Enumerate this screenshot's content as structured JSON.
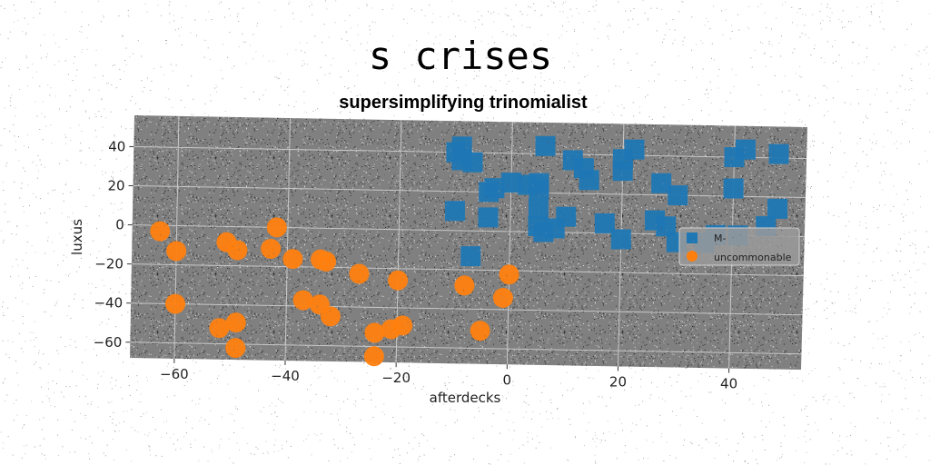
{
  "chart_data": {
    "type": "scatter",
    "suptitle": "s crises",
    "title": "supersimplifying trinomialist",
    "xlabel": "afterdecks",
    "ylabel": "luxus",
    "xlim": [
      -68,
      53
    ],
    "ylim": [
      -68,
      56
    ],
    "xticks": [
      -60,
      -40,
      -20,
      0,
      20,
      40
    ],
    "yticks": [
      -60,
      -40,
      -20,
      0,
      20,
      40
    ],
    "xtick_labels": [
      "−60",
      "−40",
      "−20",
      "0",
      "20",
      "40"
    ],
    "ytick_labels": [
      "−60",
      "−40",
      "−20",
      "0",
      "20",
      "40"
    ],
    "grid": true,
    "legend_position": "center-right",
    "plot_background": "#808080",
    "series": [
      {
        "name": "M-",
        "marker": "square",
        "color": "#1f77b4",
        "points": [
          [
            -10,
            40
          ],
          [
            -9,
            36
          ],
          [
            -7,
            35
          ],
          [
            -9,
            43
          ],
          [
            6,
            44
          ],
          [
            11,
            37
          ],
          [
            13,
            33
          ],
          [
            14,
            27
          ],
          [
            20,
            38
          ],
          [
            20,
            32
          ],
          [
            22,
            43
          ],
          [
            27,
            26
          ],
          [
            30,
            20
          ],
          [
            40,
            40
          ],
          [
            42,
            44
          ],
          [
            48,
            42
          ],
          [
            40,
            24
          ],
          [
            48,
            14
          ],
          [
            46,
            5
          ],
          [
            41,
            0
          ],
          [
            37,
            0
          ],
          [
            35,
            -4
          ],
          [
            30,
            -4
          ],
          [
            28,
            4
          ],
          [
            26,
            7
          ],
          [
            20,
            -3
          ],
          [
            17,
            5
          ],
          [
            10,
            8
          ],
          [
            8,
            2
          ],
          [
            5,
            3
          ],
          [
            5,
            12
          ],
          [
            5,
            22
          ],
          [
            3,
            24
          ],
          [
            0,
            25
          ],
          [
            -3,
            22
          ],
          [
            -4,
            20
          ],
          [
            5,
            25
          ],
          [
            -10,
            10
          ],
          [
            -4,
            7
          ],
          [
            -7,
            -13
          ],
          [
            6,
            0
          ]
        ]
      },
      {
        "name": "uncommonable",
        "marker": "circle",
        "color": "#ff7f0e",
        "points": [
          [
            -63,
            -3
          ],
          [
            -60,
            -13
          ],
          [
            -60,
            -40
          ],
          [
            -51,
            -8
          ],
          [
            -49,
            -12
          ],
          [
            -52,
            -52
          ],
          [
            -49,
            -49
          ],
          [
            -49,
            -62
          ],
          [
            -42,
            0
          ],
          [
            -43,
            -11
          ],
          [
            -39,
            -16
          ],
          [
            -37,
            -37
          ],
          [
            -34,
            -16
          ],
          [
            -33,
            -17
          ],
          [
            -34,
            -39
          ],
          [
            -32,
            -45
          ],
          [
            -27,
            -23
          ],
          [
            -20,
            -26
          ],
          [
            -24,
            -53
          ],
          [
            -24,
            -65
          ],
          [
            -21,
            -51
          ],
          [
            -19,
            -49
          ],
          [
            -8,
            -28
          ],
          [
            -5,
            -51
          ],
          [
            -1,
            -34
          ],
          [
            0,
            -22
          ]
        ]
      }
    ]
  }
}
